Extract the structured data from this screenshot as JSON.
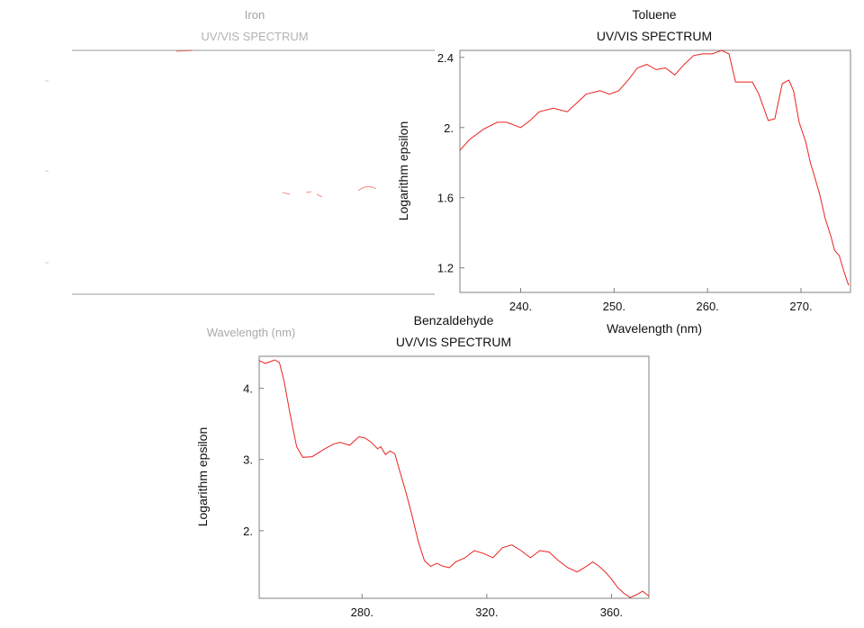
{
  "figures": [
    {
      "id": "partial",
      "title": "Iron",
      "subtitle": "UV/VIS SPECTRUM",
      "xlabel": "Wavelength (nm)"
    },
    {
      "id": "toluene",
      "title": "Toluene",
      "subtitle": "UV/VIS SPECTRUM",
      "xlabel": "Wavelength (nm)",
      "ylabel": "Logarithm epsilon"
    },
    {
      "id": "benzaldehyde",
      "title": "Benzaldehyde",
      "subtitle": "UV/VIS SPECTRUM",
      "ylabel": "Logarithm epsilon"
    }
  ],
  "chart_data": [
    {
      "type": "line",
      "title": "Iron",
      "subtitle": "UV/VIS SPECTRUM",
      "xlabel": "Wavelength (nm)",
      "ylabel": "",
      "grid": false,
      "line_color": "#e8231f",
      "note": "left plot largely faded/erased in source"
    },
    {
      "type": "line",
      "title": "Toluene",
      "subtitle": "UV/VIS SPECTRUM",
      "xlabel": "Wavelength (nm)",
      "ylabel": "Logarithm epsilon",
      "xlim": [
        233.5,
        275.3
      ],
      "ylim": [
        1.06,
        2.44
      ],
      "xticks": [
        240,
        250,
        260,
        270
      ],
      "xtick_labels": [
        "240.",
        "250.",
        "260.",
        "270."
      ],
      "yticks": [
        1.2,
        1.6,
        2.0,
        2.4
      ],
      "ytick_labels": [
        "1.2",
        "1.6",
        "2.",
        "2.4"
      ],
      "grid": false,
      "line_color": "#e8231f",
      "series": [
        {
          "x": [
            233.5,
            234.5,
            236,
            237.5,
            238.5,
            240,
            241,
            242,
            243.5,
            245,
            246,
            247,
            248.5,
            249.5,
            250.5,
            251.5,
            252.5,
            253.5,
            254.5,
            255.5,
            256.5,
            257.5,
            258.5,
            259.5,
            260.5,
            261.5,
            262.3,
            263,
            264,
            264.8,
            265.5,
            266.5,
            267.2,
            268,
            268.7,
            269.2,
            269.8,
            270.5,
            271,
            271.4,
            272,
            272.6,
            273.2,
            273.6,
            274.1,
            274.6,
            275.1
          ],
          "y": [
            1.87,
            1.93,
            1.99,
            2.03,
            2.03,
            2.0,
            2.04,
            2.09,
            2.11,
            2.09,
            2.14,
            2.19,
            2.21,
            2.19,
            2.21,
            2.27,
            2.34,
            2.36,
            2.33,
            2.34,
            2.3,
            2.36,
            2.41,
            2.42,
            2.42,
            2.45,
            2.42,
            2.26,
            2.26,
            2.26,
            2.19,
            2.04,
            2.05,
            2.25,
            2.27,
            2.21,
            2.03,
            1.92,
            1.8,
            1.73,
            1.62,
            1.48,
            1.38,
            1.3,
            1.27,
            1.18,
            1.1
          ]
        }
      ]
    },
    {
      "type": "line",
      "title": "Benzaldehyde",
      "subtitle": "UV/VIS SPECTRUM",
      "xlabel": "",
      "ylabel": "Logarithm epsilon",
      "xlim": [
        247,
        372
      ],
      "ylim": [
        1.05,
        4.45
      ],
      "xticks": [
        280,
        320,
        360
      ],
      "xtick_labels": [
        "280.",
        "320.",
        "360."
      ],
      "yticks": [
        2,
        3,
        4
      ],
      "ytick_labels": [
        "2.",
        "3.",
        "4."
      ],
      "grid": false,
      "line_color": "#e8231f",
      "series": [
        {
          "x": [
            247,
            249,
            252,
            253.5,
            255,
            257,
            259,
            261,
            264,
            268,
            271,
            273,
            276,
            279,
            281,
            283,
            285,
            286,
            287.5,
            289,
            290.5,
            292,
            294,
            296,
            298,
            300,
            302,
            304,
            306,
            308,
            310,
            313,
            316,
            319,
            322,
            325,
            328,
            331,
            334,
            337,
            340,
            343,
            346,
            349,
            352,
            354,
            356,
            358,
            360,
            362,
            364,
            366,
            368,
            370,
            372
          ],
          "y": [
            4.39,
            4.35,
            4.4,
            4.36,
            4.1,
            3.62,
            3.18,
            3.03,
            3.04,
            3.15,
            3.22,
            3.24,
            3.2,
            3.32,
            3.3,
            3.24,
            3.15,
            3.18,
            3.07,
            3.12,
            3.08,
            2.85,
            2.55,
            2.22,
            1.85,
            1.58,
            1.5,
            1.54,
            1.5,
            1.48,
            1.56,
            1.62,
            1.72,
            1.68,
            1.62,
            1.76,
            1.8,
            1.72,
            1.62,
            1.72,
            1.7,
            1.58,
            1.48,
            1.42,
            1.5,
            1.56,
            1.5,
            1.42,
            1.32,
            1.2,
            1.12,
            1.06,
            1.1,
            1.15,
            1.08
          ]
        }
      ]
    }
  ]
}
